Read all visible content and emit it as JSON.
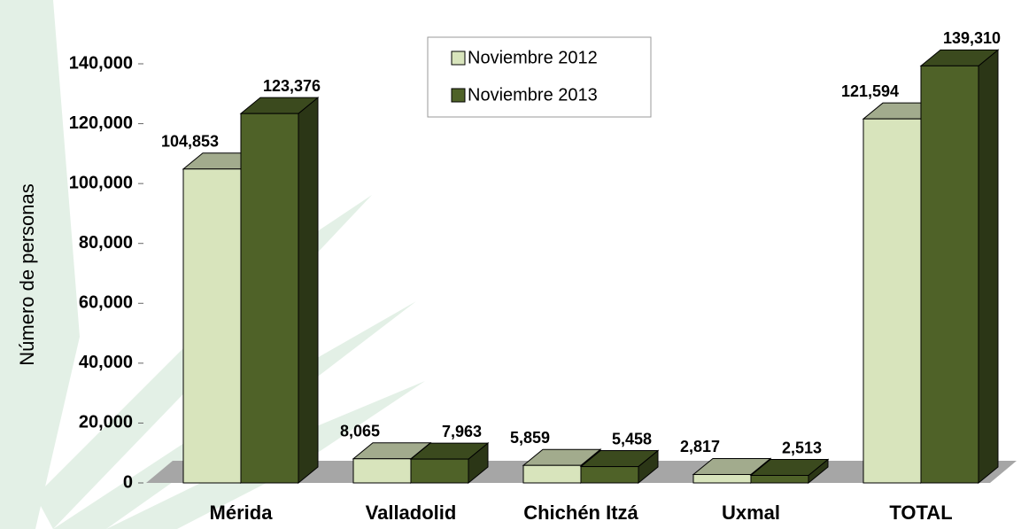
{
  "chart_data": {
    "type": "bar3d",
    "y_label": "Número de personas",
    "categories": [
      "Mérida",
      "Valladolid",
      "Chichén Itzá",
      "Uxmal",
      "TOTAL"
    ],
    "series": [
      {
        "name": "Noviembre 2012",
        "color": "#d8e4bc",
        "values": [
          104853,
          8065,
          5859,
          2817,
          121594
        ],
        "value_labels": [
          "104,853",
          "8,065",
          "5,859",
          "2,817",
          "121,594"
        ]
      },
      {
        "name": "Noviembre 2013",
        "color": "#4f6228",
        "values": [
          123376,
          7963,
          5458,
          2513,
          139310
        ],
        "value_labels": [
          "123,376",
          "7,963",
          "5,458",
          "2,513",
          "139,310"
        ]
      }
    ],
    "ylim": [
      0,
      140000
    ],
    "yticks": [
      0,
      {
        "value": 20000,
        "label": "20,000"
      },
      {
        "value": 40000,
        "label": "40,000"
      },
      {
        "value": 60000,
        "label": "60,000"
      },
      {
        "value": 80000,
        "label": "80,000"
      },
      {
        "value": 100000,
        "label": "100,000"
      },
      {
        "value": 120000,
        "label": "120,000"
      },
      {
        "value": 140000,
        "label": "140,000"
      }
    ],
    "grid": false
  }
}
